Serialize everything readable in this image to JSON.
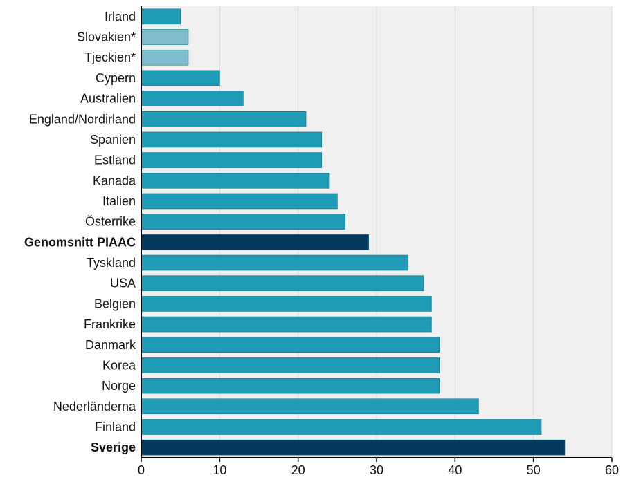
{
  "chart_data": {
    "type": "bar",
    "orientation": "horizontal",
    "title": "",
    "xlabel": "",
    "ylabel": "",
    "xlim": [
      0,
      60
    ],
    "xticks": [
      0,
      10,
      20,
      30,
      40,
      50,
      60
    ],
    "grid": true,
    "legend": "none",
    "categories": [
      "Irland",
      "Slovakien*",
      "Tjeckien*",
      "Cypern",
      "Australien",
      "England/Nordirland",
      "Spanien",
      "Estland",
      "Kanada",
      "Italien",
      "Österrike",
      "Genomsnitt PIAAC",
      "Tyskland",
      "USA",
      "Belgien",
      "Frankrike",
      "Danmark",
      "Korea",
      "Norge",
      "Nederländerna",
      "Finland",
      "Sverige"
    ],
    "values": [
      5,
      6,
      6,
      10,
      13,
      21,
      23,
      23,
      24,
      25,
      26,
      29,
      34,
      36,
      37,
      37,
      38,
      38,
      38,
      43,
      51,
      54
    ],
    "highlighted": [
      "Genomsnitt PIAAC",
      "Sverige"
    ],
    "flagged": [
      "Slovakien*",
      "Tjeckien*"
    ],
    "colors": {
      "default": "#1f9bb5",
      "highlight": "#053a5e",
      "flagged": "#7fbccd",
      "plot_background": "#f0f0f0",
      "grid": "#d8d8d8",
      "axis": "#000000"
    }
  }
}
